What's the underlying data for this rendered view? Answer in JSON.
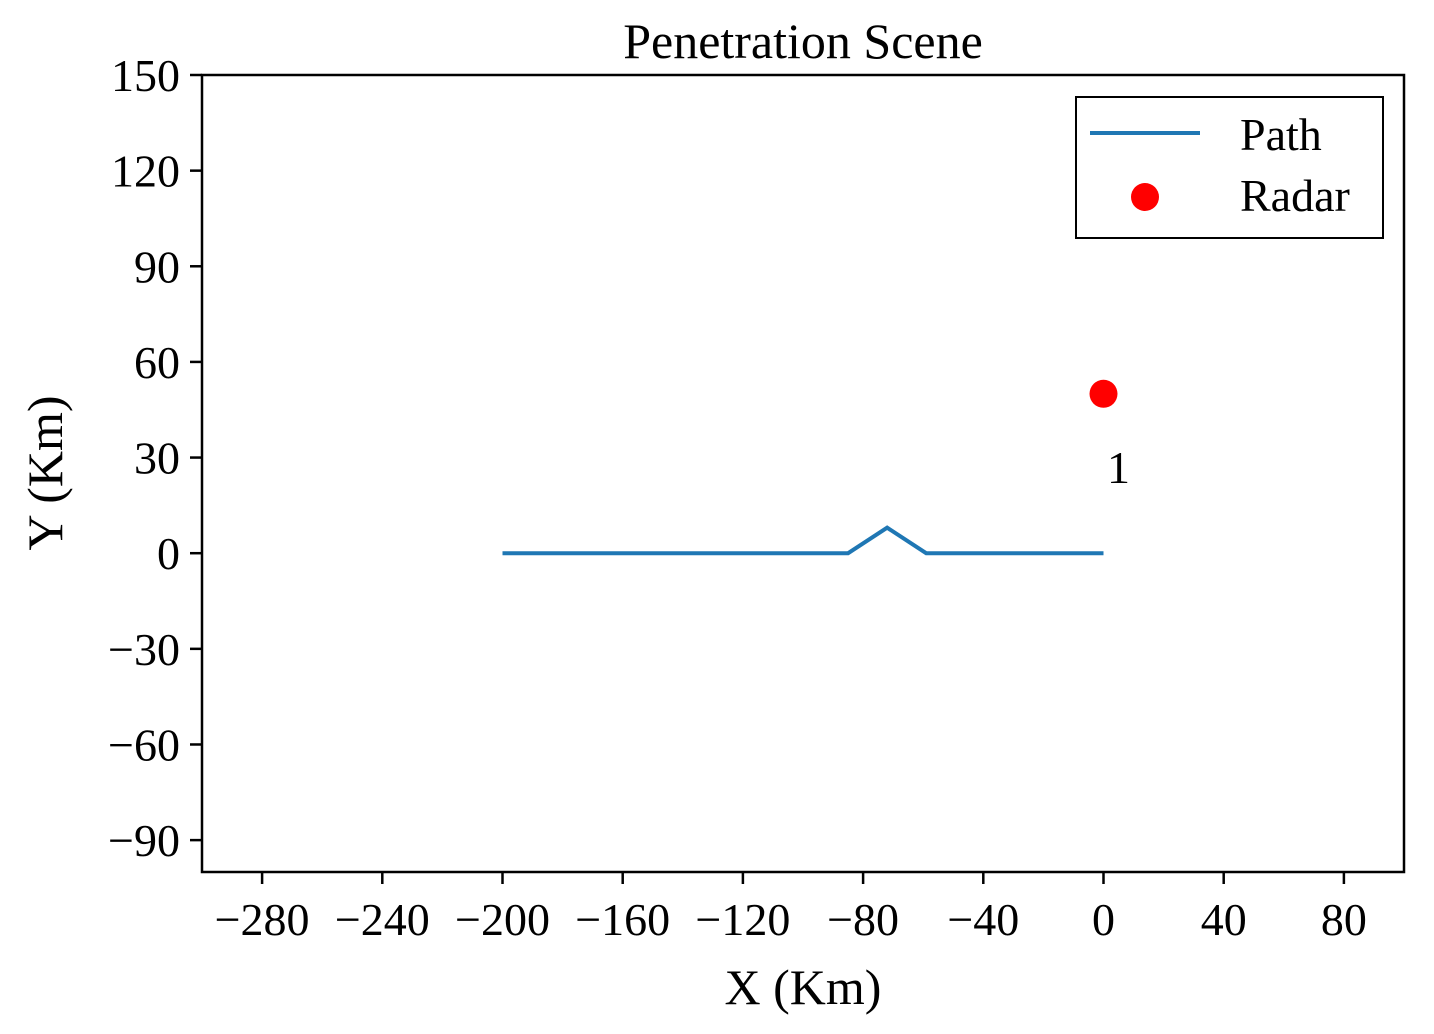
{
  "chart_data": {
    "type": "line",
    "title": "Penetration Scene",
    "xlabel": "X (Km)",
    "ylabel": "Y (Km)",
    "xlim": [
      -300,
      100
    ],
    "ylim": [
      -100,
      150
    ],
    "xticks": [
      -280,
      -240,
      -200,
      -160,
      -120,
      -80,
      -40,
      0,
      40,
      80
    ],
    "yticks": [
      -90,
      -60,
      -30,
      0,
      30,
      60,
      90,
      120,
      150
    ],
    "grid": false,
    "legend_position": "top-right",
    "series": [
      {
        "name": "Path",
        "kind": "line",
        "color": "#1f77b4",
        "x": [
          -200,
          -85,
          -72,
          -59,
          0
        ],
        "y": [
          0,
          0,
          8,
          0,
          0
        ]
      },
      {
        "name": "Radar",
        "kind": "scatter",
        "color": "#ff0000",
        "x": [
          0
        ],
        "y": [
          50
        ]
      }
    ],
    "annotations": [
      {
        "text": "1",
        "x": 5,
        "y": 27
      }
    ]
  }
}
